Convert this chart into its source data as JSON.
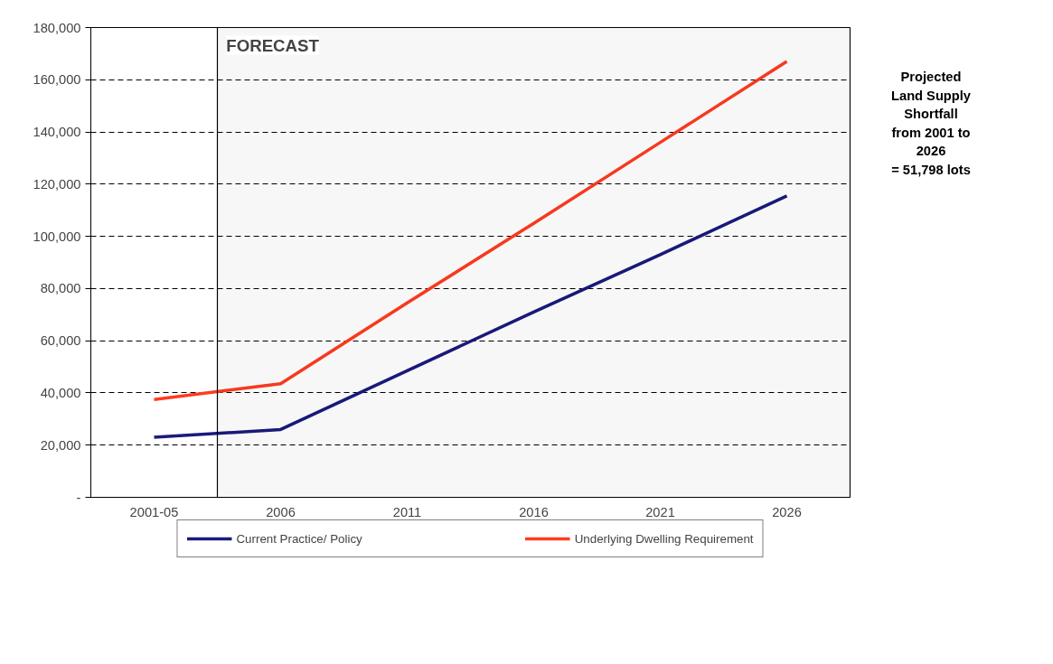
{
  "chart_data": {
    "type": "line",
    "categories": [
      "2001-05",
      "2006",
      "2011",
      "2016",
      "2021",
      "2026"
    ],
    "series": [
      {
        "name": "Current Practice/ Policy",
        "color": "#1a1a7e",
        "values": [
          23000,
          26000,
          48500,
          71000,
          93000,
          115500
        ]
      },
      {
        "name": "Underlying Dwelling Requirement",
        "color": "#ff3b1f",
        "values": [
          37500,
          43500,
          74500,
          105000,
          136000,
          167000
        ]
      }
    ],
    "ylim": [
      0,
      180000
    ],
    "yticks": [
      {
        "value": 0,
        "label": "-"
      },
      {
        "value": 20000,
        "label": "20,000"
      },
      {
        "value": 40000,
        "label": "40,000"
      },
      {
        "value": 60000,
        "label": "60,000"
      },
      {
        "value": 80000,
        "label": "80,000"
      },
      {
        "value": 100000,
        "label": "100,000"
      },
      {
        "value": 120000,
        "label": "120,000"
      },
      {
        "value": 140000,
        "label": "140,000"
      },
      {
        "value": 160000,
        "label": "160,000"
      },
      {
        "value": 180000,
        "label": "180,000"
      }
    ],
    "bands": [
      {
        "axis": "x",
        "from": "2006",
        "to": "2026",
        "label": "FORECAST"
      }
    ],
    "annotations": [
      "Projected\nLand Supply\nShortfall\nfrom 2001 to\n2026\n= 51,798 lots"
    ],
    "grid": "y",
    "line_style": "solid",
    "marker": "none",
    "legend": "bottom"
  }
}
